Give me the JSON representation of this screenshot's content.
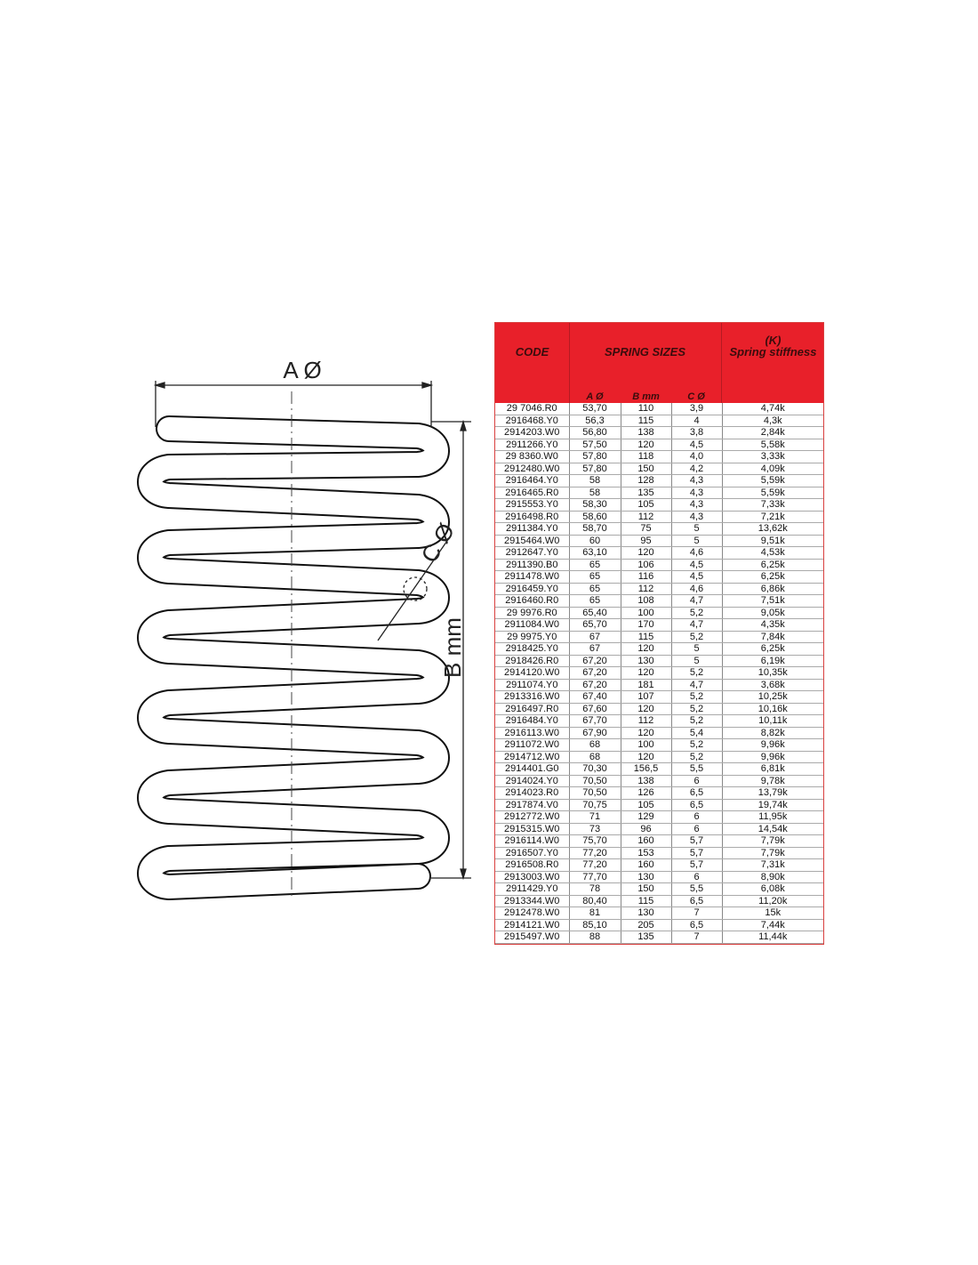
{
  "diagram": {
    "label_a": "A Ø",
    "label_b": "B mm",
    "label_c": "C Ø"
  },
  "table": {
    "header_code": "CODE",
    "header_sizes": "SPRING SIZES",
    "header_k_symbol": "(K)",
    "header_k": "Spring stiffness",
    "sub_a": "A Ø",
    "sub_b": "B mm",
    "sub_c": "C Ø",
    "accent_color": "#e8202a",
    "rows": [
      [
        "29 7046.R0",
        "53,70",
        "110",
        "3,9",
        "4,74k"
      ],
      [
        "2916468.Y0",
        "56,3",
        "115",
        "4",
        "4,3k"
      ],
      [
        "2914203.W0",
        "56,80",
        "138",
        "3,8",
        "2,84k"
      ],
      [
        "2911266.Y0",
        "57,50",
        "120",
        "4,5",
        "5,58k"
      ],
      [
        "29 8360.W0",
        "57,80",
        "118",
        "4,0",
        "3,33k"
      ],
      [
        "2912480.W0",
        "57,80",
        "150",
        "4,2",
        "4,09k"
      ],
      [
        "2916464.Y0",
        "58",
        "128",
        "4,3",
        "5,59k"
      ],
      [
        "2916465.R0",
        "58",
        "135",
        "4,3",
        "5,59k"
      ],
      [
        "2915553.Y0",
        "58,30",
        "105",
        "4,3",
        "7,33k"
      ],
      [
        "2916498.R0",
        "58,60",
        "112",
        "4,3",
        "7,21k"
      ],
      [
        "2911384.Y0",
        "58,70",
        "75",
        "5",
        "13,62k"
      ],
      [
        "2915464.W0",
        "60",
        "95",
        "5",
        "9,51k"
      ],
      [
        "2912647.Y0",
        "63,10",
        "120",
        "4,6",
        "4,53k"
      ],
      [
        "2911390.B0",
        "65",
        "106",
        "4,5",
        "6,25k"
      ],
      [
        "2911478.W0",
        "65",
        "116",
        "4,5",
        "6,25k"
      ],
      [
        "2916459.Y0",
        "65",
        "112",
        "4,6",
        "6,86k"
      ],
      [
        "2916460.R0",
        "65",
        "108",
        "4,7",
        "7,51k"
      ],
      [
        "29 9976.R0",
        "65,40",
        "100",
        "5,2",
        "9,05k"
      ],
      [
        "2911084.W0",
        "65,70",
        "170",
        "4,7",
        "4,35k"
      ],
      [
        "29 9975.Y0",
        "67",
        "115",
        "5,2",
        "7,84k"
      ],
      [
        "2918425.Y0",
        "67",
        "120",
        "5",
        "6,25k"
      ],
      [
        "2918426.R0",
        "67,20",
        "130",
        "5",
        "6,19k"
      ],
      [
        "2914120.W0",
        "67,20",
        "120",
        "5,2",
        "10,35k"
      ],
      [
        "2911074.Y0",
        "67,20",
        "181",
        "4,7",
        "3,68k"
      ],
      [
        "2913316.W0",
        "67,40",
        "107",
        "5,2",
        "10,25k"
      ],
      [
        "2916497.R0",
        "67,60",
        "120",
        "5,2",
        "10,16k"
      ],
      [
        "2916484.Y0",
        "67,70",
        "112",
        "5,2",
        "10,11k"
      ],
      [
        "2916113.W0",
        "67,90",
        "120",
        "5,4",
        "8,82k"
      ],
      [
        "2911072.W0",
        "68",
        "100",
        "5,2",
        "9,96k"
      ],
      [
        "2914712.W0",
        "68",
        "120",
        "5,2",
        "9,96k"
      ],
      [
        "2914401.G0",
        "70,30",
        "156,5",
        "5,5",
        "6,81k"
      ],
      [
        "2914024.Y0",
        "70,50",
        "138",
        "6",
        "9,78k"
      ],
      [
        "2914023.R0",
        "70,50",
        "126",
        "6,5",
        "13,79k"
      ],
      [
        "2917874.V0",
        "70,75",
        "105",
        "6,5",
        "19,74k"
      ],
      [
        "2912772.W0",
        "71",
        "129",
        "6",
        "11,95k"
      ],
      [
        "2915315.W0",
        "73",
        "96",
        "6",
        "14,54k"
      ],
      [
        "2916114.W0",
        "75,70",
        "160",
        "5,7",
        "7,79k"
      ],
      [
        "2916507.Y0",
        "77,20",
        "153",
        "5,7",
        "7,79k"
      ],
      [
        "2916508.R0",
        "77,20",
        "160",
        "5,7",
        "7,31k"
      ],
      [
        "2913003.W0",
        "77,70",
        "130",
        "6",
        "8,90k"
      ],
      [
        "2911429.Y0",
        "78",
        "150",
        "5,5",
        "6,08k"
      ],
      [
        "2913344.W0",
        "80,40",
        "115",
        "6,5",
        "11,20k"
      ],
      [
        "2912478.W0",
        "81",
        "130",
        "7",
        "15k"
      ],
      [
        "2914121.W0",
        "85,10",
        "205",
        "6,5",
        "7,44k"
      ],
      [
        "2915497.W0",
        "88",
        "135",
        "7",
        "11,44k"
      ]
    ]
  }
}
